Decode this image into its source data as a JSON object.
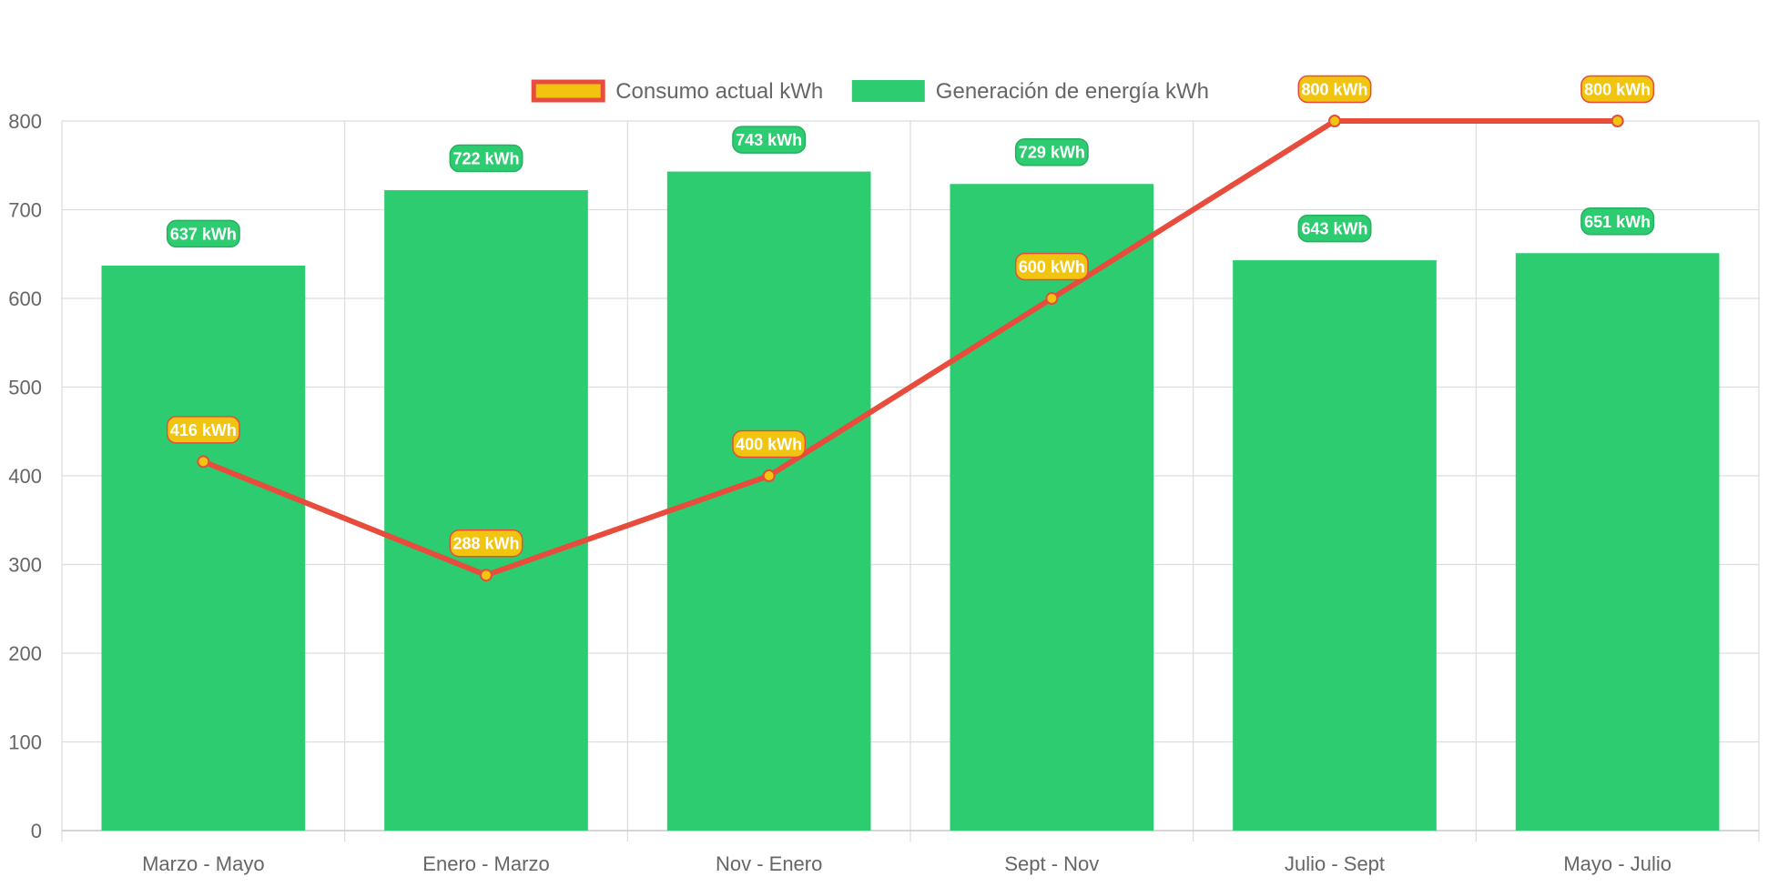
{
  "chart_data": {
    "type": "bar",
    "categories": [
      "Marzo - Mayo",
      "Enero - Marzo",
      "Nov - Enero",
      "Sept - Nov",
      "Julio - Sept",
      "Mayo - Julio"
    ],
    "series": [
      {
        "name": "Generación de energía kWh",
        "type": "bar",
        "values": [
          637,
          722,
          743,
          729,
          643,
          651
        ],
        "color": "#2ecc71",
        "label_border": "#27ae60"
      },
      {
        "name": "Consumo actual kWh",
        "type": "line",
        "values": [
          416,
          288,
          400,
          600,
          800,
          800
        ],
        "line_color": "#e74c3c",
        "point_color": "#f1c40f",
        "label_border": "#e74c3c"
      }
    ],
    "data_label_unit": "kWh",
    "ylim": [
      0,
      800
    ],
    "yticks": [
      0,
      100,
      200,
      300,
      400,
      500,
      600,
      700,
      800
    ],
    "grid": true,
    "legend_position": "top-center",
    "grid_color": "#dddddd",
    "axis_color": "#cccccc"
  }
}
